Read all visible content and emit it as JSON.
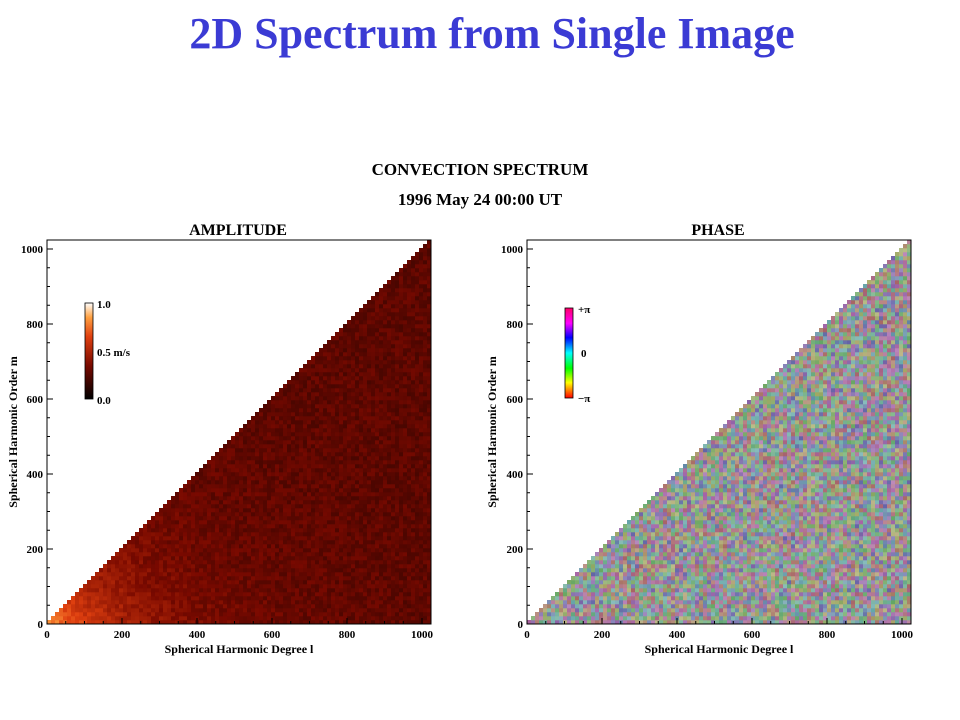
{
  "slide": {
    "title": "2D Spectrum from Single Image"
  },
  "figure": {
    "title": "CONVECTION SPECTRUM",
    "date": "1996 May 24 00:00 UT"
  },
  "colors": {
    "title": "#3b3bd4",
    "amplitude_dark": "#3c0000",
    "amplitude_mid": "#8b1a0a",
    "amplitude_bright": "#ffe0b0"
  },
  "chart_data": [
    {
      "type": "heatmap",
      "title": "AMPLITUDE",
      "xlabel": "Spherical Harmonic Degree l",
      "ylabel": "Spherical Harmonic Order m",
      "xlim": [
        0,
        1024
      ],
      "ylim": [
        0,
        1024
      ],
      "xticks": [
        0,
        200,
        400,
        600,
        800,
        1000
      ],
      "yticks": [
        0,
        200,
        400,
        600,
        800,
        1000
      ],
      "domain": "m <= l (lower-right triangle filled)",
      "colorbar": {
        "colormap": "red-temperature",
        "range": [
          0.0,
          1.0
        ],
        "tick_labels": [
          "1.0",
          "0.5 m/s",
          "0.0"
        ],
        "position": "upper-left"
      },
      "description_of_values": "amplitude brightest (about 0.8-1.0 m/s) at low degree l below about 250 and low m, falling to about 0.25-0.35 m/s over most of the triangle"
    },
    {
      "type": "heatmap",
      "title": "PHASE",
      "xlabel": "Spherical Harmonic Degree l",
      "ylabel": "Spherical Harmonic Order m",
      "xlim": [
        0,
        1024
      ],
      "ylim": [
        0,
        1024
      ],
      "xticks": [
        0,
        200,
        400,
        600,
        800,
        1000
      ],
      "yticks": [
        0,
        200,
        400,
        600,
        800,
        1000
      ],
      "domain": "m <= l (lower-right triangle filled)",
      "colorbar": {
        "colormap": "cyclic-rainbow",
        "range": [
          "-π",
          "+π"
        ],
        "tick_labels": [
          "+π",
          "0",
          "−π"
        ],
        "position": "upper-left"
      },
      "description_of_values": "phase uniformly random across the triangle, appearing as multicoloured grey noise"
    }
  ]
}
